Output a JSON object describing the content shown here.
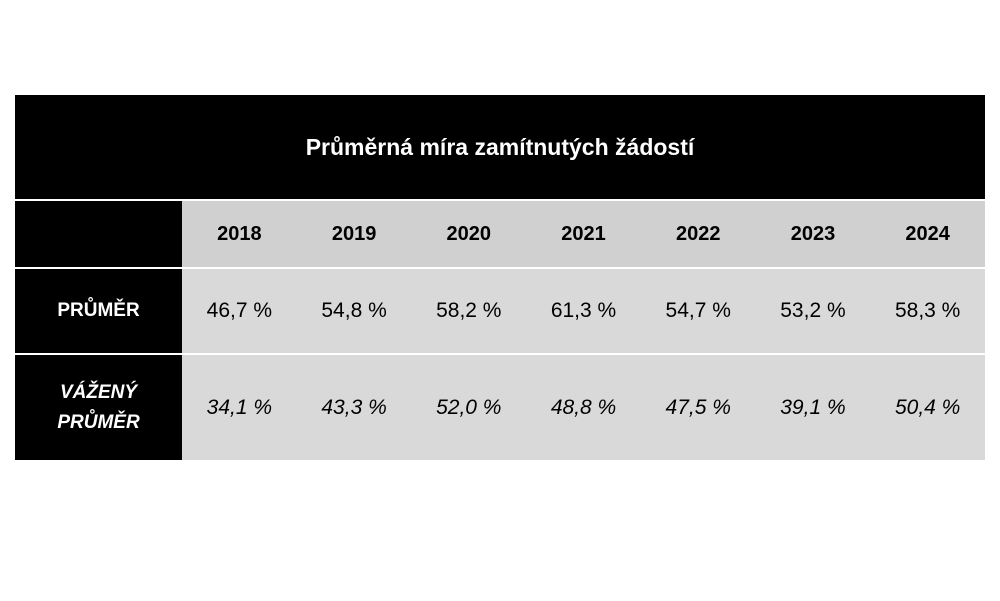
{
  "chart_data": {
    "type": "table",
    "title": "Průměrná míra zamítnutých žádostí",
    "columns": [
      "2018",
      "2019",
      "2020",
      "2021",
      "2022",
      "2023",
      "2024"
    ],
    "rows": [
      {
        "label": "PRŮMĚR",
        "values": [
          "46,7 %",
          "54,8 %",
          "58,2 %",
          "61,3 %",
          "54,7 %",
          "53,2 %",
          "58,3 %"
        ]
      },
      {
        "label": "VÁŽENÝ PRŮMĚR",
        "values": [
          "34,1 %",
          "43,3 %",
          "52,0 %",
          "48,8 %",
          "47,5 %",
          "39,1 %",
          "50,4 %"
        ]
      }
    ]
  }
}
